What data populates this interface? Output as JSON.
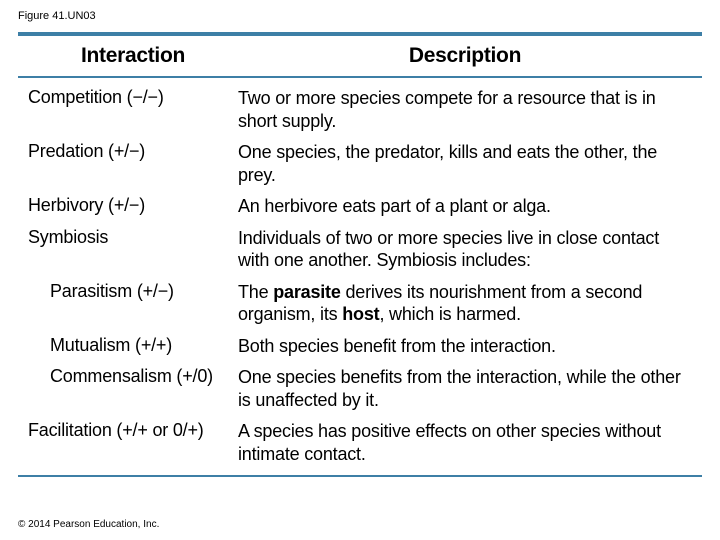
{
  "figure_label": "Figure 41.UN03",
  "copyright": "© 2014 Pearson Education, Inc.",
  "colors": {
    "rule": "#3d7fa6",
    "text": "#000000",
    "background": "#ffffff"
  },
  "header": {
    "left": "Interaction",
    "right": "Description"
  },
  "rows": [
    {
      "left": "Competition (−/−)",
      "right": "Two or more species compete for a resource that is in short supply.",
      "sub": false
    },
    {
      "left": "Predation (+/−)",
      "right": "One species, the predator, kills and eats the other, the prey.",
      "sub": false
    },
    {
      "left": "Herbivory (+/−)",
      "right": "An herbivore eats part of a plant or alga.",
      "sub": false
    },
    {
      "left": "Symbiosis",
      "right": "Individuals of two or more species live in close contact with one another. Symbiosis includes:",
      "sub": false
    },
    {
      "left": "Parasitism (+/−)",
      "right_pre": "The ",
      "right_b1": "parasite",
      "right_mid": " derives its nourishment from a second organism, its ",
      "right_b2": "host",
      "right_post": ", which is harmed.",
      "sub": true,
      "has_bold": true
    },
    {
      "left": "Mutualism (+/+)",
      "right": "Both species benefit from the interaction.",
      "sub": true
    },
    {
      "left": "Commensalism (+/0)",
      "right": "One species benefits from the interaction, while the other is unaffected by it.",
      "sub": true
    },
    {
      "left": "Facilitation (+/+ or 0/+)",
      "right": "A species has positive effects on other species without intimate contact.",
      "sub": false
    }
  ]
}
